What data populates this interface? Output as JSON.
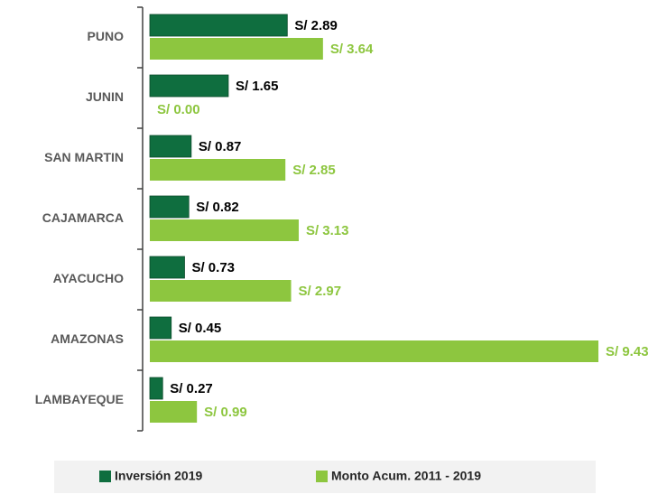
{
  "chart_data": {
    "type": "bar",
    "orientation": "horizontal",
    "categories": [
      "PUNO",
      "JUNIN",
      "SAN MARTIN",
      "CAJAMARCA",
      "AYACUCHO",
      "AMAZONAS",
      "LAMBAYEQUE"
    ],
    "series": [
      {
        "name": "Inversión 2019",
        "color": "#0f6e3f",
        "label_color": "#000000",
        "values": [
          2.89,
          1.65,
          0.87,
          0.82,
          0.73,
          0.45,
          0.27
        ],
        "value_labels": [
          "S/ 2.89",
          "S/ 1.65",
          "S/ 0.87",
          "S/ 0.82",
          "S/ 0.73",
          "S/ 0.45",
          "S/ 0.27"
        ]
      },
      {
        "name": "Monto Acum. 2011 - 2019",
        "color": "#8dc63f",
        "label_color": "#8dc63f",
        "values": [
          3.64,
          0.0,
          2.85,
          3.13,
          2.97,
          9.43,
          0.99
        ],
        "value_labels": [
          "S/ 3.64",
          "S/ 0.00",
          "S/ 2.85",
          "S/ 3.13",
          "S/ 2.97",
          "S/ 9.43",
          "S/ 0.99"
        ]
      }
    ],
    "legend": "bottom"
  }
}
